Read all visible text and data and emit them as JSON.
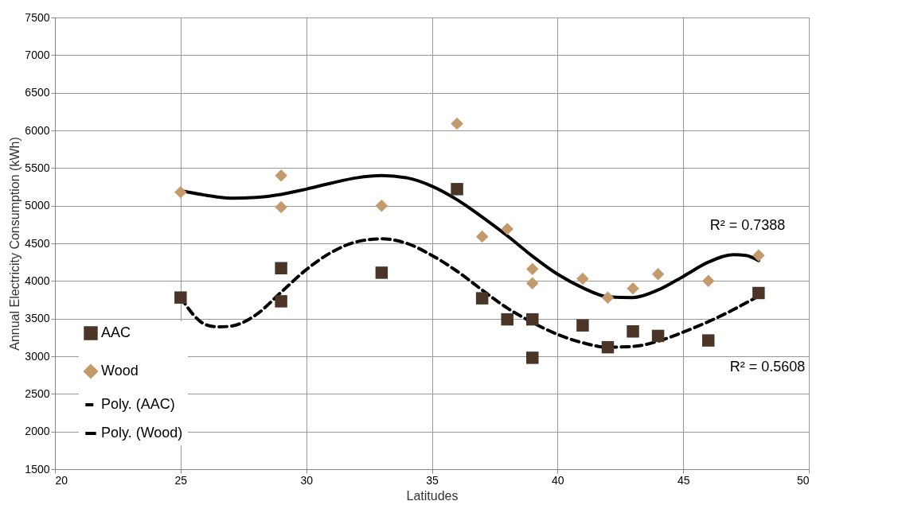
{
  "chart_data": {
    "type": "scatter",
    "xlabel": "Latitudes",
    "ylabel": "Annual Electricity Consumption (kWh)",
    "xlim": [
      20,
      50
    ],
    "xticks": [
      20,
      25,
      30,
      35,
      40,
      45,
      50
    ],
    "ylim": [
      1500,
      7500
    ],
    "yticks": [
      1500,
      2000,
      2500,
      3000,
      3500,
      4000,
      4500,
      5000,
      5500,
      6000,
      6500,
      7000,
      7500
    ],
    "grid": true,
    "legend": "bottom left",
    "series": [
      {
        "name": "AAC",
        "marker": "square",
        "color": "#4a3526",
        "x": [
          25,
          29,
          29,
          33,
          36,
          37,
          38,
          39,
          39,
          41,
          42,
          43,
          44,
          46,
          48
        ],
        "values": [
          3780,
          4170,
          3730,
          4110,
          5220,
          3770,
          3490,
          3490,
          2980,
          3410,
          3120,
          3330,
          3270,
          3210,
          3840
        ]
      },
      {
        "name": "Wood",
        "marker": "diamond",
        "color": "#c49a6c",
        "x": [
          25,
          29,
          29,
          33,
          36,
          37,
          38,
          39,
          39,
          41,
          42,
          43,
          44,
          46,
          48
        ],
        "values": [
          5180,
          5400,
          4980,
          5000,
          6090,
          4590,
          4690,
          4160,
          3970,
          4030,
          3780,
          3900,
          4090,
          4000,
          4340
        ]
      },
      {
        "name": "Poly. (AAC)",
        "type": "line",
        "line_style": "dashed",
        "color": "#000000",
        "x": [
          25,
          26,
          26.5,
          27,
          28,
          29,
          30,
          31,
          32,
          33,
          34,
          35,
          36,
          37,
          38,
          39,
          40,
          41,
          42,
          43,
          44,
          45,
          46,
          47,
          48
        ],
        "values": [
          3780,
          3420,
          3390,
          3400,
          3550,
          3850,
          4150,
          4380,
          4520,
          4560,
          4500,
          4340,
          4130,
          3880,
          3640,
          3450,
          3290,
          3180,
          3120,
          3130,
          3200,
          3320,
          3460,
          3620,
          3800
        ]
      },
      {
        "name": "Poly. (Wood)",
        "type": "line",
        "line_style": "solid",
        "color": "#000000",
        "x": [
          25,
          26,
          27,
          28,
          29,
          30,
          31,
          32,
          33,
          34,
          35,
          36,
          37,
          38,
          39,
          40,
          41,
          42,
          43,
          44,
          45,
          46,
          47,
          47.5,
          48
        ],
        "values": [
          5200,
          5140,
          5100,
          5110,
          5150,
          5220,
          5300,
          5370,
          5400,
          5370,
          5260,
          5080,
          4850,
          4600,
          4330,
          4090,
          3910,
          3790,
          3780,
          3880,
          4060,
          4250,
          4350,
          4340,
          4270
        ]
      }
    ],
    "annotations": [
      "R² = 0.7388",
      "R² = 0.5608"
    ]
  }
}
